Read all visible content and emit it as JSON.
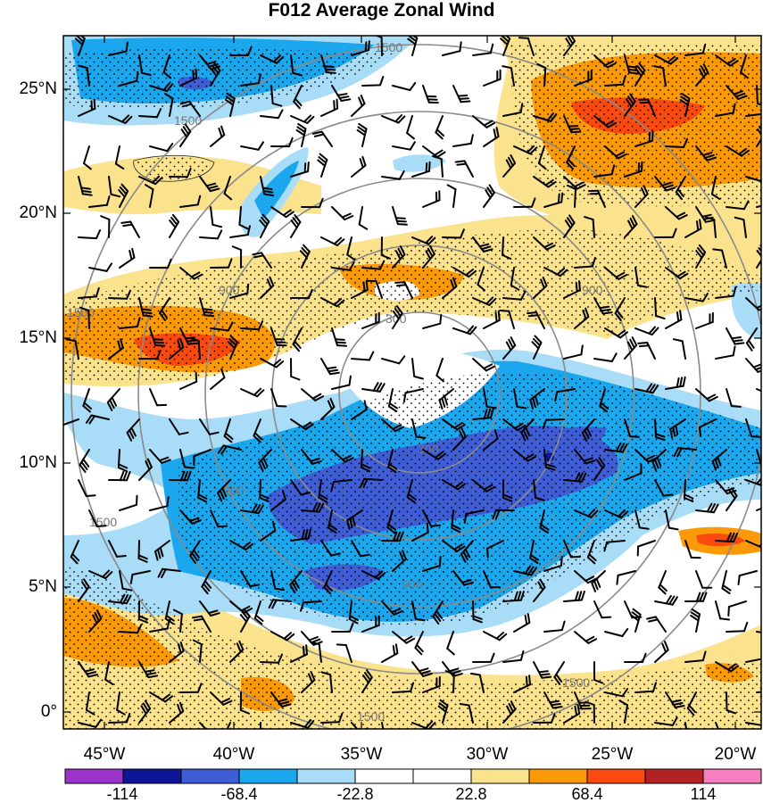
{
  "title": "F012 Average Zonal Wind",
  "lat_labels": [
    "25°N",
    "20°N",
    "15°N",
    "10°N",
    "5°N",
    "0°"
  ],
  "lon_labels": [
    "45°W",
    "40°W",
    "35°W",
    "30°W",
    "25°W",
    "20°W"
  ],
  "colorbar": {
    "labels": [
      "-114",
      "-68.4",
      "-22.8",
      "22.8",
      "68.4",
      "114"
    ],
    "colors": [
      "#9b34c9",
      "#0c1696",
      "#3f5ed6",
      "#1aa7ee",
      "#a8dcf7",
      "#ffffff",
      "#ffffff",
      "#fbe38d",
      "#fb9a06",
      "#fb4a0f",
      "#b22222",
      "#f77fbf"
    ]
  },
  "range_ring_labels": [
    "300",
    "300",
    "900",
    "900",
    "900",
    "900",
    "1500",
    "1500",
    "1500",
    "1500",
    "1500",
    "1500"
  ]
}
